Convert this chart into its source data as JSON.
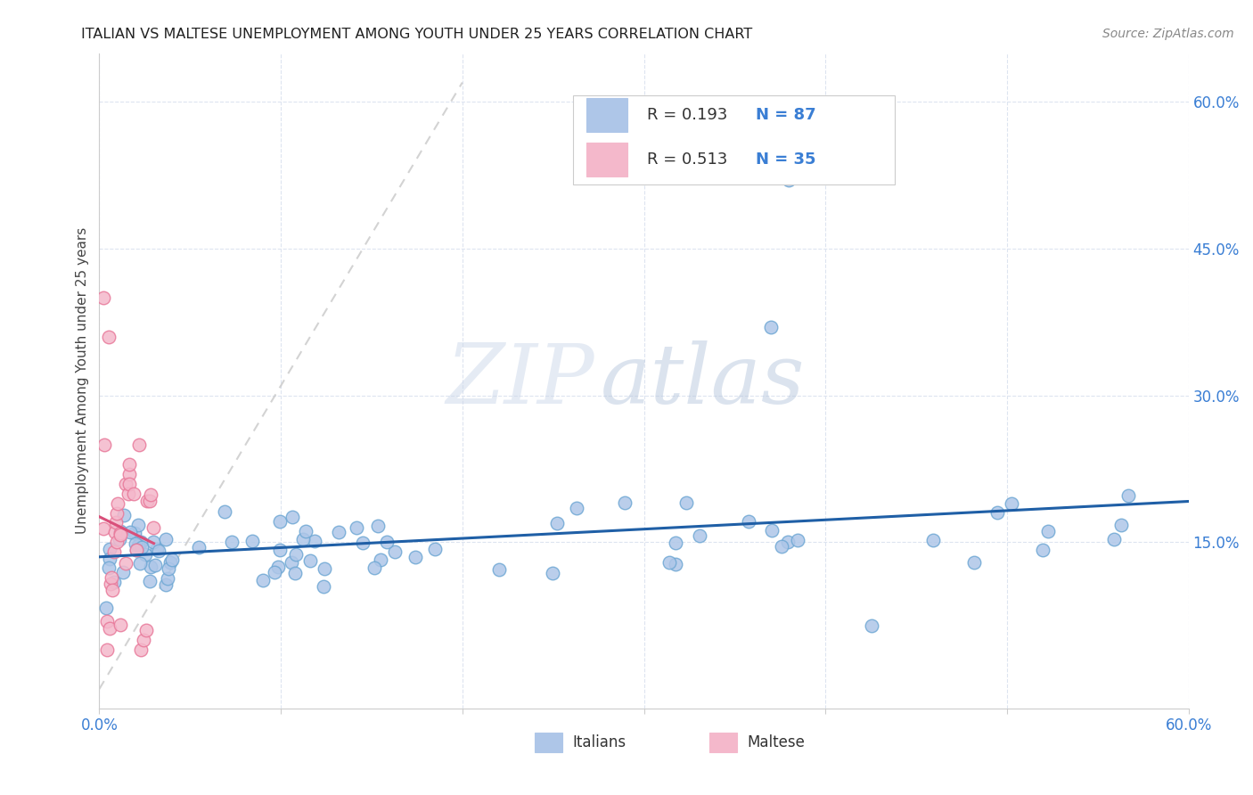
{
  "title": "ITALIAN VS MALTESE UNEMPLOYMENT AMONG YOUTH UNDER 25 YEARS CORRELATION CHART",
  "source": "Source: ZipAtlas.com",
  "ylabel": "Unemployment Among Youth under 25 years",
  "xlim": [
    0.0,
    0.6
  ],
  "ylim": [
    -0.02,
    0.65
  ],
  "legend_r1": "R = 0.193",
  "legend_n1": "N = 87",
  "legend_r2": "R = 0.513",
  "legend_n2": "N = 35",
  "watermark_zip": "ZIP",
  "watermark_atlas": "atlas",
  "italian_color": "#aec6e8",
  "maltese_color": "#f4b8cb",
  "italian_edge": "#6fa8d4",
  "maltese_edge": "#e8799a",
  "trend_italian_color": "#1f5fa6",
  "trend_maltese_color": "#d94f7a",
  "italians_label": "Italians",
  "maltese_label": "Maltese",
  "legend_text_color": "#333333",
  "legend_num_color": "#3a7ed4",
  "axis_tick_color": "#3a7ed4",
  "title_color": "#222222",
  "source_color": "#888888",
  "grid_color": "#dde4f0",
  "ref_line_color": "#c8c8c8"
}
